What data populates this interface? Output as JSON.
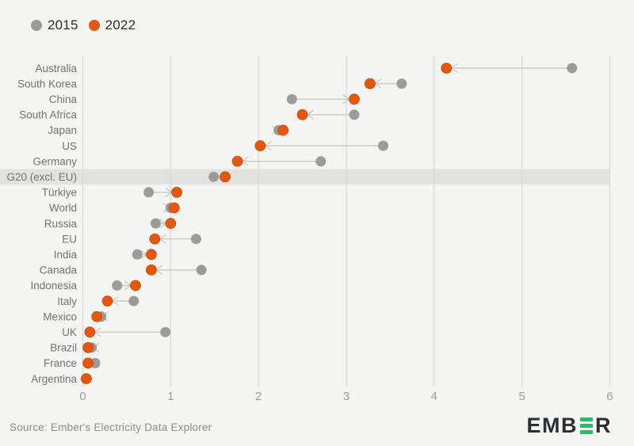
{
  "legend": {
    "items": [
      {
        "label": "2015",
        "color": "#9b9b99"
      },
      {
        "label": "2022",
        "color": "#e4570f"
      }
    ]
  },
  "chart_data": {
    "type": "dumbbell",
    "orientation": "horizontal",
    "categories": [
      "Australia",
      "South Korea",
      "China",
      "South Africa",
      "Japan",
      "US",
      "Germany",
      "G20 (excl. EU)",
      "Türkiye",
      "World",
      "Russia",
      "EU",
      "India",
      "Canada",
      "Indonesia",
      "Italy",
      "Mexico",
      "UK",
      "Brazil",
      "France",
      "Argentina"
    ],
    "series": [
      {
        "name": "2015",
        "color": "#9b9b99",
        "values": [
          5.57,
          3.63,
          2.38,
          3.09,
          2.23,
          3.42,
          2.71,
          1.49,
          0.75,
          1.0,
          0.83,
          1.29,
          0.62,
          1.35,
          0.39,
          0.58,
          0.21,
          0.94,
          0.1,
          0.14,
          0.04
        ]
      },
      {
        "name": "2022",
        "color": "#e4570f",
        "values": [
          4.14,
          3.27,
          3.09,
          2.5,
          2.28,
          2.02,
          1.76,
          1.62,
          1.07,
          1.04,
          1.0,
          0.82,
          0.78,
          0.78,
          0.6,
          0.28,
          0.16,
          0.08,
          0.06,
          0.06,
          0.04
        ]
      }
    ],
    "highlight_category": "G20 (excl. EU)",
    "xlim": [
      0,
      6
    ],
    "xticks": [
      0,
      1,
      2,
      3,
      4,
      5,
      6
    ],
    "grid": "vertical",
    "legend_position": "top-left",
    "annotation_style": "arrow from 2015 dot to 2022 dot"
  },
  "footer": {
    "source": "Source: Ember's Electricity Data Explorer",
    "logo": {
      "text_before": "EMB",
      "bar_letter": "E",
      "text_after": "R"
    }
  },
  "colors": {
    "background": "#f4f4f2",
    "highlight_band": "#e2e2e0",
    "gridline": "#d8d8d6",
    "connector": "#c8c8c6",
    "tick_label": "#9a9a98",
    "category_label": "#71716f",
    "dot_2015": "#9b9b99",
    "dot_2022": "#e4570f",
    "logo_dark": "#2a3032",
    "logo_green": "#1fc06a"
  }
}
